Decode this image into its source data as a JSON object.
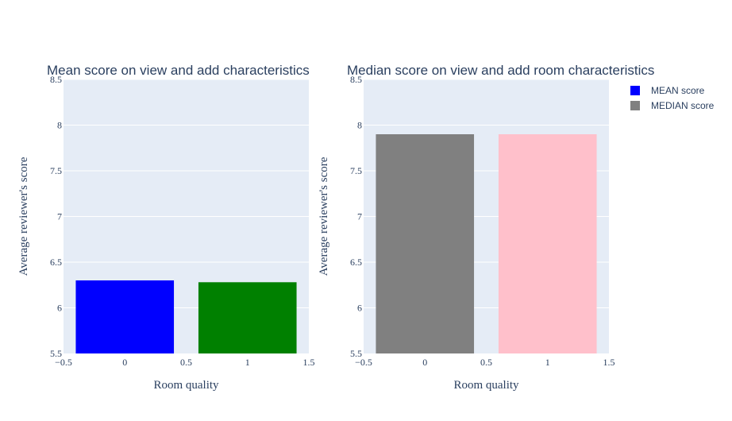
{
  "chart_data": [
    {
      "type": "bar",
      "title": "Mean score on view and add characteristics",
      "xlabel": "Room quality",
      "ylabel": "Average reviewer's score",
      "xlim": [
        -0.5,
        1.5
      ],
      "ylim": [
        5.5,
        8.5
      ],
      "x_ticks": [
        "−0.5",
        "0",
        "0.5",
        "1",
        "1.5"
      ],
      "y_ticks": [
        "5.5",
        "6",
        "6.5",
        "7",
        "7.5",
        "8",
        "8.5"
      ],
      "grid": true,
      "bars": [
        {
          "x": 0,
          "value": 6.3,
          "color": "#0000ff"
        },
        {
          "x": 1,
          "value": 6.28,
          "color": "#008000"
        }
      ]
    },
    {
      "type": "bar",
      "title": "Median score on view and add room characteristics",
      "xlabel": "Room quality",
      "ylabel": "Average reviewer's score",
      "xlim": [
        -0.5,
        1.5
      ],
      "ylim": [
        5.5,
        8.5
      ],
      "x_ticks": [
        "−0.5",
        "0",
        "0.5",
        "1",
        "1.5"
      ],
      "y_ticks": [
        "5.5",
        "6",
        "6.5",
        "7",
        "7.5",
        "8",
        "8.5"
      ],
      "grid": true,
      "bars": [
        {
          "x": 0,
          "value": 7.9,
          "color": "#808080"
        },
        {
          "x": 1,
          "value": 7.9,
          "color": "#ffc0cb"
        }
      ]
    }
  ],
  "legend": {
    "placement": "top-right",
    "items": [
      {
        "label": "MEAN score",
        "color": "#0000ff"
      },
      {
        "label": "MEDIAN score",
        "color": "#808080"
      }
    ]
  },
  "style": {
    "plot_bg": "#e5ecf6",
    "grid_color": "#ffffff",
    "text_color": "#2a3f5f"
  }
}
